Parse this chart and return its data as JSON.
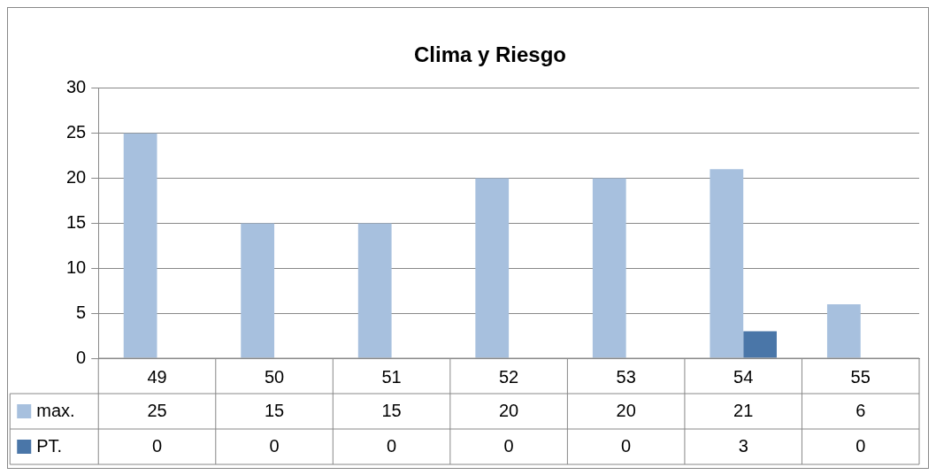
{
  "chart_data": {
    "type": "bar",
    "title": "Clima y Riesgo",
    "categories": [
      "49",
      "50",
      "51",
      "52",
      "53",
      "54",
      "55"
    ],
    "series": [
      {
        "name": "max.",
        "color": "#a7c0de",
        "values": [
          25,
          15,
          15,
          20,
          20,
          21,
          6
        ]
      },
      {
        "name": "PT.",
        "color": "#4a76a8",
        "values": [
          0,
          0,
          0,
          0,
          0,
          3,
          0
        ]
      }
    ],
    "ylim": [
      0,
      30
    ],
    "yticks": [
      0,
      5,
      10,
      15,
      20,
      25,
      30
    ],
    "grid": "y",
    "data_labels": true,
    "legend": "bottom left"
  }
}
